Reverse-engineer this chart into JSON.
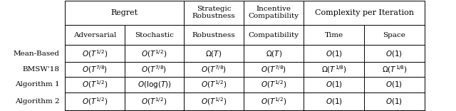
{
  "rows": [
    [
      "Mean-Based",
      "$O(T^{1/2})$",
      "$O(T^{1/2})$",
      "$\\Omega(T)$",
      "$\\Omega(T)$",
      "$O(1)$",
      "$O(1)$"
    ],
    [
      "BMSW'18",
      "$O(T^{7/8})$",
      "$O(T^{7/8})$",
      "$O(T^{7/8})$",
      "$O(T^{7/8})$",
      "$\\Omega(T^{1/8})$",
      "$\\Omega(T^{1/8})$"
    ],
    [
      "Algorithm 1",
      "$O(T^{1/2})$",
      "$O(\\log(T))$",
      "$O(T^{1/2})$",
      "$O(T^{1/2})$",
      "$O(1)$",
      "$O(1)$"
    ],
    [
      "Algorithm 2",
      "$O(T^{1/2})$",
      "$O(T^{1/2})$",
      "$O(T^{1/2})$",
      "$O(T^{1/2})$",
      "$O(1)$",
      "$O(1)$"
    ]
  ],
  "figsize": [
    6.4,
    1.56
  ],
  "dpi": 100
}
